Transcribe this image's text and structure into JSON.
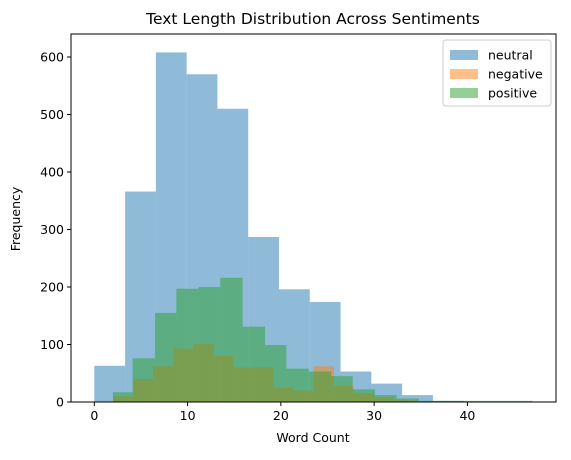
{
  "chart_data": {
    "type": "histogram",
    "title": "Text Length Distribution Across Sentiments",
    "xlabel": "Word Count",
    "ylabel": "Frequency",
    "xlim": [
      -2.5,
      49.5
    ],
    "ylim": [
      0,
      640
    ],
    "xticks": [
      0,
      10,
      20,
      30,
      40
    ],
    "yticks": [
      0,
      100,
      200,
      300,
      400,
      500,
      600
    ],
    "legend_position": "top-right",
    "alpha": 0.5,
    "series": [
      {
        "name": "neutral",
        "color": "#1f77b4",
        "bin_edges": [
          0,
          3.3,
          6.6,
          9.9,
          13.2,
          16.5,
          19.8,
          23.1,
          26.4,
          29.7,
          33,
          36.3,
          39.6,
          42.9,
          46.2,
          49.5
        ],
        "counts": [
          63,
          366,
          608,
          570,
          510,
          287,
          196,
          174,
          53,
          32,
          12,
          2,
          1,
          1,
          1
        ]
      },
      {
        "name": "negative",
        "color": "#ff7f0e",
        "bin_edges": [
          2,
          4.2,
          6.3,
          8.5,
          10.6,
          12.8,
          14.9,
          17.1,
          19.2,
          21.4,
          23.5,
          25.7,
          27.8,
          30,
          32.1,
          34.3
        ],
        "counts": [
          10,
          40,
          62,
          93,
          101,
          80,
          60,
          61,
          25,
          20,
          62,
          28,
          15,
          8,
          3
        ]
      },
      {
        "name": "positive",
        "color": "#2ca02c",
        "bin_edges": [
          2,
          4.1,
          6.5,
          8.8,
          11.2,
          13.5,
          15.9,
          18.3,
          20.6,
          23,
          25.4,
          27.7,
          30.1,
          32.4,
          34.8,
          47.0
        ],
        "counts": [
          17,
          76,
          155,
          197,
          200,
          216,
          131,
          99,
          58,
          53,
          45,
          22,
          12,
          6,
          2
        ]
      }
    ]
  }
}
